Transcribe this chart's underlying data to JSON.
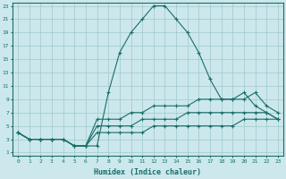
{
  "xlabel": "Humidex (Indice chaleur)",
  "bg_color": "#cce8ec",
  "grid_color": "#9fc8cc",
  "line_color": "#1a6e6a",
  "xlim": [
    -0.5,
    23.5
  ],
  "ylim": [
    0.5,
    23.5
  ],
  "xticks": [
    0,
    1,
    2,
    3,
    4,
    5,
    6,
    7,
    8,
    9,
    10,
    11,
    12,
    13,
    14,
    15,
    16,
    17,
    18,
    19,
    20,
    21,
    22,
    23
  ],
  "yticks": [
    1,
    3,
    5,
    7,
    9,
    11,
    13,
    15,
    17,
    19,
    21,
    23
  ],
  "lines": [
    {
      "x": [
        0,
        1,
        2,
        3,
        4,
        5,
        6,
        7,
        8,
        9,
        10,
        11,
        12,
        13,
        14,
        15,
        16,
        17,
        18,
        19,
        20,
        21,
        22,
        23
      ],
      "y": [
        4,
        3,
        3,
        3,
        3,
        2,
        2,
        2,
        10,
        16,
        19,
        21,
        23,
        23,
        21,
        19,
        16,
        12,
        9,
        9,
        10,
        8,
        7,
        6
      ]
    },
    {
      "x": [
        0,
        1,
        2,
        3,
        4,
        5,
        6,
        7,
        8,
        9,
        10,
        11,
        12,
        13,
        14,
        15,
        16,
        17,
        18,
        19,
        20,
        21,
        22,
        23
      ],
      "y": [
        4,
        3,
        3,
        3,
        3,
        2,
        2,
        6,
        6,
        6,
        7,
        7,
        8,
        8,
        8,
        8,
        9,
        9,
        9,
        9,
        9,
        10,
        8,
        7
      ]
    },
    {
      "x": [
        0,
        1,
        2,
        3,
        4,
        5,
        6,
        7,
        8,
        9,
        10,
        11,
        12,
        13,
        14,
        15,
        16,
        17,
        18,
        19,
        20,
        21,
        22,
        23
      ],
      "y": [
        4,
        3,
        3,
        3,
        3,
        2,
        2,
        5,
        5,
        5,
        5,
        6,
        6,
        6,
        6,
        7,
        7,
        7,
        7,
        7,
        7,
        7,
        7,
        6
      ]
    },
    {
      "x": [
        0,
        1,
        2,
        3,
        4,
        5,
        6,
        7,
        8,
        9,
        10,
        11,
        12,
        13,
        14,
        15,
        16,
        17,
        18,
        19,
        20,
        21,
        22,
        23
      ],
      "y": [
        4,
        3,
        3,
        3,
        3,
        2,
        2,
        4,
        4,
        4,
        4,
        4,
        5,
        5,
        5,
        5,
        5,
        5,
        5,
        5,
        6,
        6,
        6,
        6
      ]
    }
  ]
}
